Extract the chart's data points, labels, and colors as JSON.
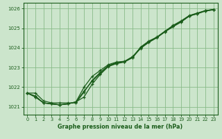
{
  "title": "Graphe pression niveau de la mer (hPa)",
  "bg_color": "#cce5cc",
  "grid_color": "#88bb88",
  "line_color": "#1a5c1a",
  "xlim": [
    -0.5,
    23.5
  ],
  "ylim": [
    1020.6,
    1026.3
  ],
  "yticks": [
    1021,
    1022,
    1023,
    1024,
    1025,
    1026
  ],
  "xticks": [
    0,
    1,
    2,
    3,
    4,
    5,
    6,
    7,
    8,
    9,
    10,
    11,
    12,
    13,
    14,
    15,
    16,
    17,
    18,
    19,
    20,
    21,
    22,
    23
  ],
  "series": [
    [
      1021.7,
      1021.7,
      1021.3,
      1021.2,
      1021.2,
      1021.2,
      1021.2,
      1021.75,
      1022.35,
      1022.75,
      1023.1,
      1023.25,
      1023.3,
      1023.5,
      1024.05,
      1024.35,
      1024.55,
      1024.85,
      1025.15,
      1025.38,
      1025.65,
      1025.78,
      1025.9,
      1025.96
    ],
    [
      1021.7,
      1021.5,
      1021.2,
      1021.15,
      1021.1,
      1021.15,
      1021.25,
      1021.5,
      1022.15,
      1022.65,
      1023.05,
      1023.2,
      1023.28,
      1023.52,
      1023.98,
      1024.28,
      1024.52,
      1024.82,
      1025.08,
      1025.32,
      1025.62,
      1025.74,
      1025.88,
      1025.94
    ],
    [
      1021.7,
      1021.5,
      1021.2,
      1021.15,
      1021.1,
      1021.15,
      1021.25,
      1022.0,
      1022.55,
      1022.85,
      1023.15,
      1023.28,
      1023.32,
      1023.56,
      1024.02,
      1024.32,
      1024.55,
      1024.85,
      1025.12,
      1025.35,
      1025.64,
      1025.76,
      1025.9,
      1025.96
    ],
    [
      1021.7,
      1021.55,
      1021.2,
      1021.15,
      1021.1,
      1021.15,
      1021.25,
      1021.8,
      1022.3,
      1022.7,
      1023.08,
      1023.22,
      1023.3,
      1023.53,
      1024.0,
      1024.3,
      1024.53,
      1024.83,
      1025.1,
      1025.33,
      1025.63,
      1025.75,
      1025.89,
      1025.95
    ]
  ]
}
